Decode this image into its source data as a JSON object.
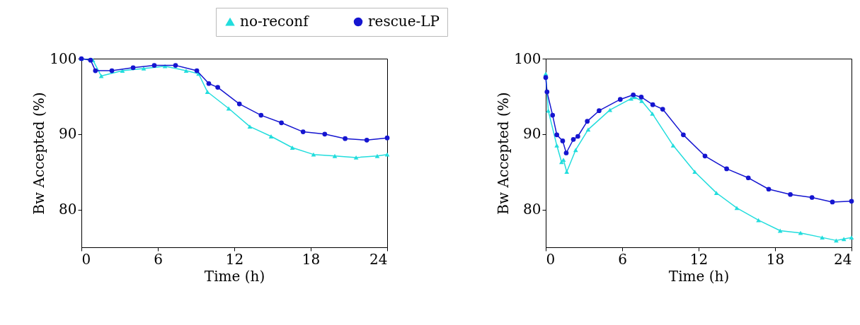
{
  "chart_data": [
    {
      "type": "line",
      "xlabel": "Time (h)",
      "ylabel": "Bw Accepted (%)",
      "xlim": [
        0,
        24
      ],
      "xticks": [
        0,
        6,
        12,
        18,
        24
      ],
      "ylim": [
        75,
        100
      ],
      "yticks": [
        80,
        90,
        100
      ],
      "grid": false,
      "legend": "top",
      "series": [
        {
          "name": "no-reconf",
          "color": "#22dddd",
          "marker": "triangle",
          "x": [
            0,
            0.9,
            1.56,
            3.22,
            4.89,
            6.56,
            8.22,
            9.2,
            9.89,
            11.56,
            13.22,
            14.89,
            16.56,
            18.22,
            19.89,
            21.56,
            23.22,
            24
          ],
          "values": [
            100,
            99.8,
            97.7,
            98.4,
            98.7,
            99.0,
            98.4,
            98.0,
            95.6,
            93.4,
            91.0,
            89.7,
            88.2,
            87.3,
            87.1,
            86.9,
            87.1,
            87.3
          ]
        },
        {
          "name": "rescue-LP",
          "color": "#1515d0",
          "marker": "circle",
          "x": [
            0,
            0.72,
            1.1,
            2.39,
            4.06,
            5.72,
            7.39,
            9.06,
            10.0,
            10.7,
            12.4,
            14.1,
            15.7,
            17.4,
            19.1,
            20.7,
            22.4,
            24
          ],
          "values": [
            100,
            99.8,
            98.4,
            98.4,
            98.8,
            99.1,
            99.1,
            98.4,
            96.7,
            96.2,
            94.0,
            92.5,
            91.5,
            90.3,
            90.0,
            89.4,
            89.2,
            89.5
          ]
        }
      ]
    },
    {
      "type": "line",
      "xlabel": "Time (h)",
      "ylabel": "Bw Accepted (%)",
      "xlim": [
        0,
        24
      ],
      "xticks": [
        0,
        6,
        12,
        18,
        24
      ],
      "ylim": [
        75,
        100
      ],
      "yticks": [
        80,
        90,
        100
      ],
      "grid": false,
      "series": [
        {
          "name": "no-reconf",
          "color": "#22dddd",
          "marker": "triangle",
          "x": [
            0,
            0.2,
            0.87,
            1.24,
            1.39,
            1.65,
            2.35,
            3.33,
            5.04,
            6.7,
            6.98,
            7.53,
            8.37,
            10.0,
            11.7,
            13.4,
            15.0,
            16.7,
            18.4,
            20.0,
            21.7,
            22.8,
            23.4,
            24
          ],
          "values": [
            98.0,
            93.1,
            88.5,
            86.3,
            86.6,
            85.0,
            87.9,
            90.6,
            93.2,
            94.7,
            94.9,
            94.4,
            92.7,
            88.5,
            85.0,
            82.2,
            80.2,
            78.6,
            77.2,
            76.9,
            76.3,
            75.9,
            76.1,
            76.3
          ]
        },
        {
          "name": "rescue-LP",
          "color": "#1515d0",
          "marker": "circle",
          "x": [
            0,
            0.1,
            0.54,
            0.87,
            1.33,
            1.61,
            2.17,
            2.52,
            3.26,
            4.19,
            5.85,
            6.87,
            7.5,
            8.4,
            9.18,
            10.8,
            12.5,
            14.2,
            15.9,
            17.5,
            19.2,
            20.9,
            22.5,
            24
          ],
          "values": [
            97.5,
            95.6,
            92.5,
            89.9,
            89.1,
            87.5,
            89.3,
            89.7,
            91.7,
            93.1,
            94.6,
            95.2,
            94.9,
            93.9,
            93.3,
            89.9,
            87.1,
            85.4,
            84.2,
            82.7,
            82.0,
            81.6,
            81.0,
            81.1
          ]
        }
      ]
    }
  ]
}
